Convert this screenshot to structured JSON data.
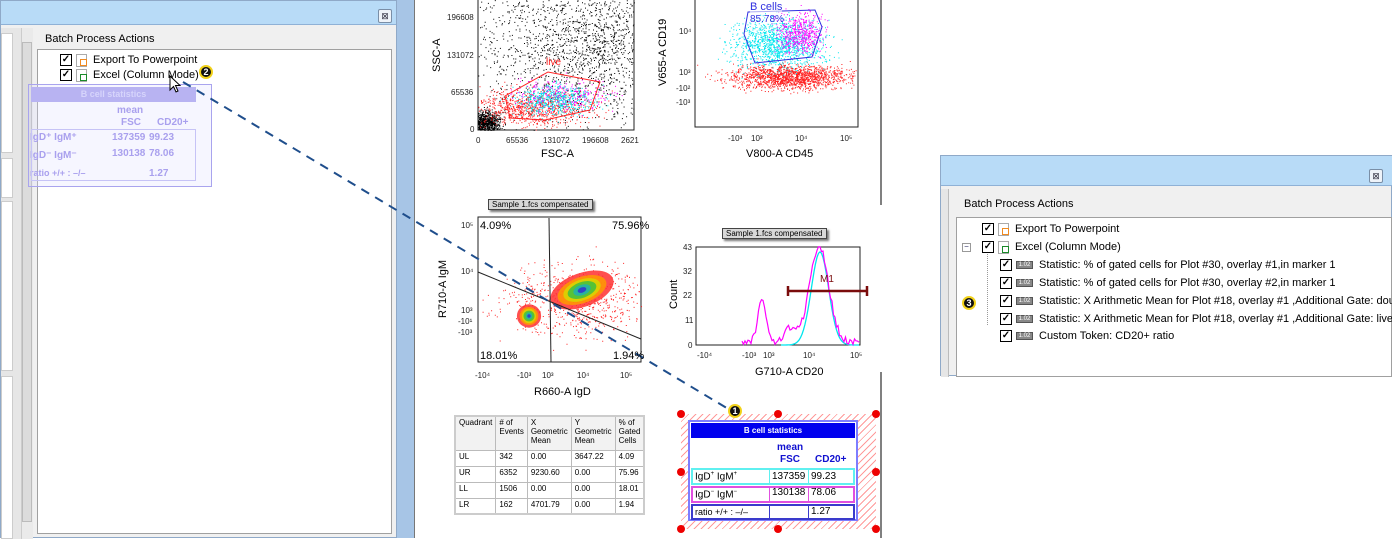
{
  "left_panel": {
    "header": "Batch Process Actions",
    "close_label": "⊠",
    "tree": [
      {
        "label": "Export To Powerpoint",
        "checked": true,
        "icon": "powerpoint-file-icon"
      },
      {
        "label": "Excel (Column Mode)",
        "checked": true,
        "icon": "excel-file-icon"
      }
    ],
    "callout_badge": "2",
    "ghost_table": {
      "title": "B cell statistics",
      "col_header_top": "mean",
      "col_headers": [
        "FSC",
        "CD20+"
      ],
      "rows": [
        {
          "label": "IgD⁺ IgM⁺",
          "values": [
            "137359",
            "99.23"
          ]
        },
        {
          "label": "IgD⁻ IgM⁻",
          "values": [
            "130138",
            "78.06"
          ]
        },
        {
          "label": "ratio +/+ : –/–",
          "values": [
            "",
            "1.27"
          ]
        }
      ]
    }
  },
  "right_panel": {
    "header": "Batch Process Actions",
    "close_label": "⊠",
    "callout_badge": "3",
    "tree": [
      {
        "label": "Export To Powerpoint",
        "checked": true,
        "icon": "powerpoint-file-icon"
      },
      {
        "label": "Excel (Column Mode)",
        "checked": true,
        "icon": "excel-file-icon",
        "expanded": true
      },
      {
        "label": "Statistic: % of gated cells for Plot #30, overlay #1,in marker 1",
        "checked": true,
        "icon": "statistic-icon"
      },
      {
        "label": "Statistic: % of gated cells for Plot #30, overlay #2,in marker 1",
        "checked": true,
        "icon": "statistic-icon"
      },
      {
        "label": "Statistic: X Arithmetic Mean for Plot #18, overlay #1 ,Additional Gate: dou",
        "checked": true,
        "icon": "statistic-icon"
      },
      {
        "label": "Statistic: X Arithmetic Mean for Plot #18, overlay #1 ,Additional Gate: live",
        "checked": true,
        "icon": "statistic-icon"
      },
      {
        "label": "Custom Token: CD20+ ratio",
        "checked": true,
        "icon": "statistic-icon"
      }
    ],
    "stat_icon_text": "1.02"
  },
  "plots": {
    "fsc_ssc": {
      "xlabel": "FSC-A",
      "ylabel": "SSC-A",
      "gate_label": "live",
      "xticks": [
        "0",
        "65536",
        "131072",
        "196608",
        "2621"
      ],
      "yticks": [
        "196608",
        "131072",
        "65536",
        "0"
      ]
    },
    "cd45_cd19": {
      "xlabel": "V800-A CD45",
      "ylabel": "V655-A CD19",
      "gate_label": "B cells",
      "gate_value": "85.78%",
      "xticks": [
        "-10³",
        "10³",
        "10⁴",
        "10⁵"
      ],
      "yticks": [
        "10⁴",
        "10³",
        "-10²",
        "-10³"
      ]
    },
    "igd_igm": {
      "title": "Sample 1.fcs compensated",
      "xlabel": "R660-A IgD",
      "ylabel": "R710-A IgM",
      "quadrants": {
        "UL": "4.09%",
        "UR": "75.96%",
        "LL": "18.01%",
        "LR": "1.94%"
      },
      "xticks": [
        "-10⁴",
        "-10³",
        "10³",
        "10⁴",
        "10⁵"
      ],
      "yticks": [
        "10⁵",
        "10⁴",
        "10³",
        "-10¹",
        "-10³"
      ]
    },
    "cd20_hist": {
      "title": "Sample 1.fcs compensated",
      "xlabel": "G710-A CD20",
      "ylabel": "Count",
      "marker_label": "M1",
      "xticks": [
        "-10⁴",
        "-10³",
        "10³",
        "10⁴",
        "10⁵"
      ],
      "yticks": [
        "43",
        "32",
        "22",
        "11",
        "0"
      ]
    }
  },
  "quadrant_table": {
    "headers": [
      "Quadrant",
      "# of Events",
      "X Geometric Mean",
      "Y Geometric Mean",
      "% of Gated Cells"
    ],
    "rows": [
      [
        "UL",
        "342",
        "0.00",
        "3647.22",
        "4.09"
      ],
      [
        "UR",
        "6352",
        "9230.60",
        "0.00",
        "75.96"
      ],
      [
        "LL",
        "1506",
        "0.00",
        "0.00",
        "18.01"
      ],
      [
        "LR",
        "162",
        "4701.79",
        "0.00",
        "1.94"
      ]
    ]
  },
  "bcell_table": {
    "title": "B cell statistics",
    "col_header_top": "mean",
    "col_headers": [
      "FSC",
      "CD20+"
    ],
    "rows": [
      {
        "label_main": "IgD",
        "sup1": "+",
        "label_mid": " IgM",
        "sup2": "+",
        "values": [
          "137359",
          "99.23"
        ]
      },
      {
        "label_main": "IgD",
        "sup1": "−",
        "label_mid": " IgM",
        "sup2": "−",
        "values": [
          "130138",
          "78.06"
        ]
      },
      {
        "label_main": "ratio +/+ : –/–",
        "sup1": "",
        "label_mid": "",
        "sup2": "",
        "values": [
          "",
          "1.27"
        ]
      }
    ],
    "callout_badge": "1"
  },
  "colors": {
    "accent_blue": "#0000ee",
    "gate_red": "#ff2020",
    "marker": "#7a0c0c",
    "callout_line": "#1f4e8c",
    "cyan": "#00e5ee",
    "magenta": "#ff00ff"
  }
}
